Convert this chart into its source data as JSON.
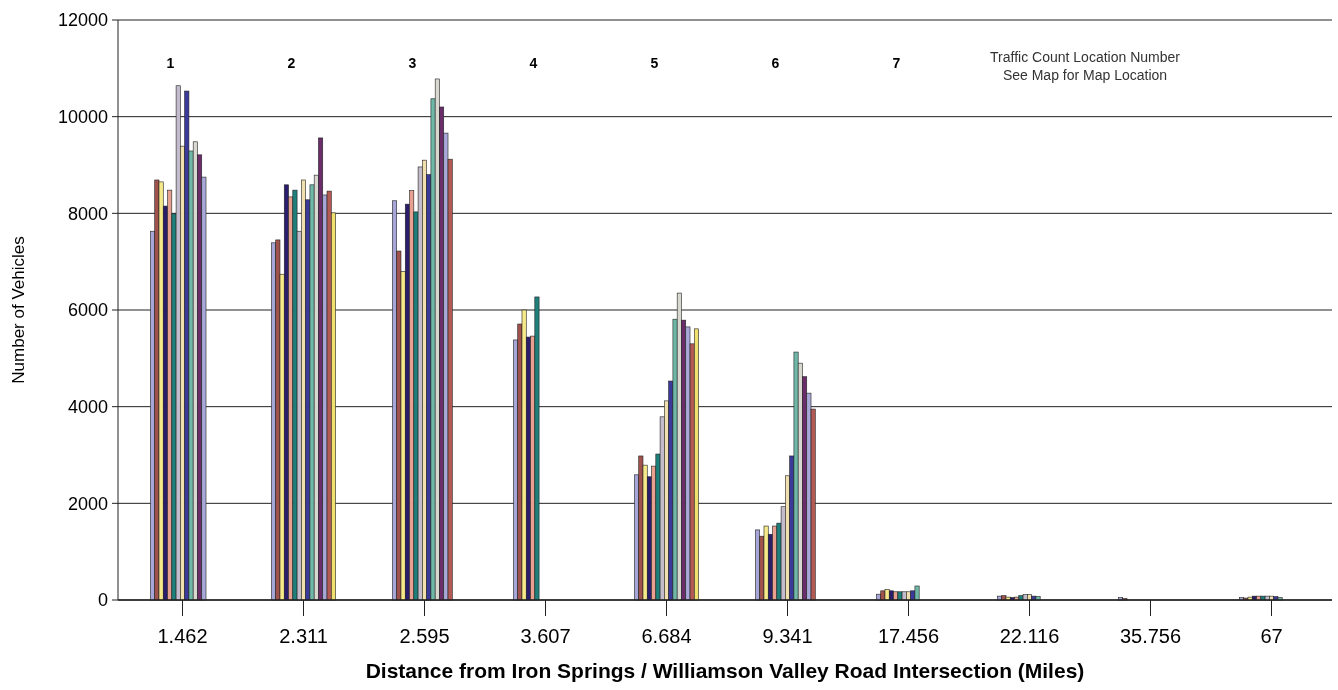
{
  "chart_data": {
    "type": "bar",
    "xlabel": "Distance from Iron Springs / Williamson Valley Road Intersection (Miles)",
    "ylabel": "Number of Vehicles",
    "categories": [
      "1.462",
      "2.311",
      "2.595",
      "3.607",
      "6.684",
      "9.341",
      "17.456",
      "22.116",
      "35.756",
      "67"
    ],
    "ylim": [
      0,
      12000
    ],
    "yticks": [
      0,
      2000,
      4000,
      6000,
      8000,
      10000,
      12000
    ],
    "grid": "y",
    "series": [
      {
        "color": "#a6a6d8",
        "values": [
          7630,
          7390,
          8260,
          5380,
          2590,
          1450,
          120,
          80,
          50,
          50
        ]
      },
      {
        "color": "#a0524d",
        "values": [
          8690,
          7450,
          7220,
          5710,
          2980,
          1320,
          190,
          90,
          30,
          40
        ]
      },
      {
        "color": "#f5e98a",
        "values": [
          8650,
          6740,
          6800,
          6000,
          2790,
          1530,
          220,
          60,
          null,
          60
        ]
      },
      {
        "color": "#2a1d6b",
        "values": [
          8150,
          8590,
          8190,
          5440,
          2550,
          1360,
          190,
          50,
          null,
          80
        ]
      },
      {
        "color": "#e8a090",
        "values": [
          8480,
          8340,
          8470,
          5460,
          2770,
          1530,
          170,
          60,
          null,
          80
        ]
      },
      {
        "color": "#1f7f7a",
        "values": [
          7990,
          8480,
          8030,
          6270,
          3020,
          1590,
          170,
          90,
          null,
          80
        ]
      },
      {
        "color": "#c4bccc",
        "values": [
          10640,
          7630,
          8960,
          null,
          3790,
          1930,
          170,
          110,
          null,
          80
        ]
      },
      {
        "color": "#f0e0b0",
        "values": [
          9390,
          8690,
          9100,
          null,
          4120,
          2570,
          170,
          110,
          null,
          80
        ]
      },
      {
        "color": "#3b3a9a",
        "values": [
          10530,
          8280,
          8800,
          null,
          4530,
          2980,
          190,
          80,
          null,
          70
        ]
      },
      {
        "color": "#6fb8a8",
        "values": [
          9290,
          8590,
          10370,
          null,
          5810,
          5130,
          290,
          70,
          null,
          50
        ]
      },
      {
        "color": "#d8d8d0",
        "values": [
          9480,
          8790,
          10780,
          null,
          6350,
          4900,
          null,
          null,
          null,
          null
        ]
      },
      {
        "color": "#6a2d6a",
        "values": [
          9210,
          9560,
          10200,
          null,
          5790,
          4620,
          null,
          null,
          null,
          null
        ]
      },
      {
        "color": "#a8a8d8",
        "values": [
          8750,
          8380,
          9660,
          null,
          5650,
          4280,
          null,
          null,
          null,
          null
        ]
      },
      {
        "color": "#b45a55",
        "values": [
          null,
          8460,
          9120,
          null,
          5300,
          3950,
          null,
          null,
          null,
          null
        ]
      },
      {
        "color": "#f0e070",
        "values": [
          null,
          8010,
          null,
          null,
          5610,
          null,
          null,
          null,
          null,
          null
        ]
      }
    ],
    "annotations": [
      "1",
      "2",
      "3",
      "4",
      "5",
      "6",
      "7",
      "Traffic Count Location Number\nSee Map for Map Location"
    ]
  }
}
